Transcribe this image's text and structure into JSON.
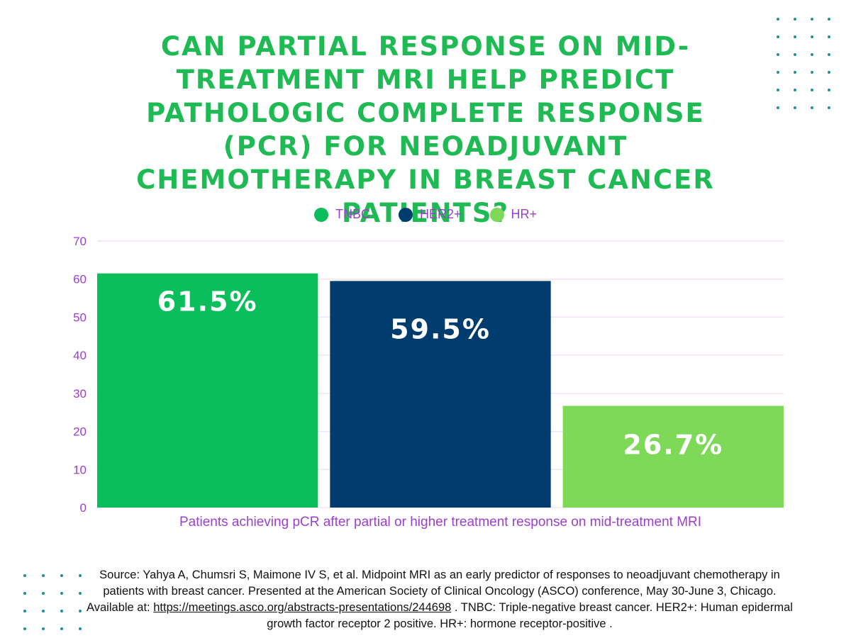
{
  "title": "CAN PARTIAL RESPONSE ON MID-TREATMENT MRI HELP PREDICT PATHOLOGIC COMPLETE RESPONSE (PCR) FOR NEOADJUVANT CHEMOTHERAPY IN BREAST CANCER PATIENTS?",
  "colors": {
    "title": "#1fba54",
    "tnbc": "#0abf5b",
    "her2": "#013c6e",
    "hr": "#7dd957",
    "axis_text": "#9c3fd0",
    "grid": "#f0e2f6",
    "dots": "#1f8fa0"
  },
  "legend": [
    {
      "label": "TNBC",
      "color": "#0abf5b"
    },
    {
      "label": "HER2+",
      "color": "#013c6e"
    },
    {
      "label": "HR+",
      "color": "#7dd957"
    }
  ],
  "chart_data": {
    "type": "bar",
    "title": "",
    "categories": [
      "Patients achieving pCR after partial or higher treatment response on mid-treatment MRI"
    ],
    "series": [
      {
        "name": "TNBC",
        "values": [
          61.5
        ],
        "label": "61.5%"
      },
      {
        "name": "HER2+",
        "values": [
          59.5
        ],
        "label": "59.5%"
      },
      {
        "name": "HR+",
        "values": [
          26.7
        ],
        "label": "26.7%"
      }
    ],
    "xlabel": "Patients achieving pCR after partial or higher treatment response on mid-treatment MRI",
    "ylabel": "",
    "ylim": [
      0,
      70
    ],
    "yticks": [
      0,
      10,
      20,
      30,
      40,
      50,
      60,
      70
    ],
    "grid": true,
    "legend_position": "top-center"
  },
  "source": {
    "before_link": "Source: Yahya A, Chumsri S, Maimone IV S, et al. Midpoint MRI as an early predictor of responses to neoadjuvant chemotherapy in patients with breast cancer. Presented at the American Society of Clinical Oncology (ASCO) conference, May 30-June 3, Chicago. Available at: ",
    "link": "https://meetings.asco.org/abstracts-presentations/244698",
    "after_link": " . TNBC: Triple-negative breast cancer. HER2+: Human epidermal growth factor receptor 2 positive. HR+: hormone receptor-positive ."
  }
}
